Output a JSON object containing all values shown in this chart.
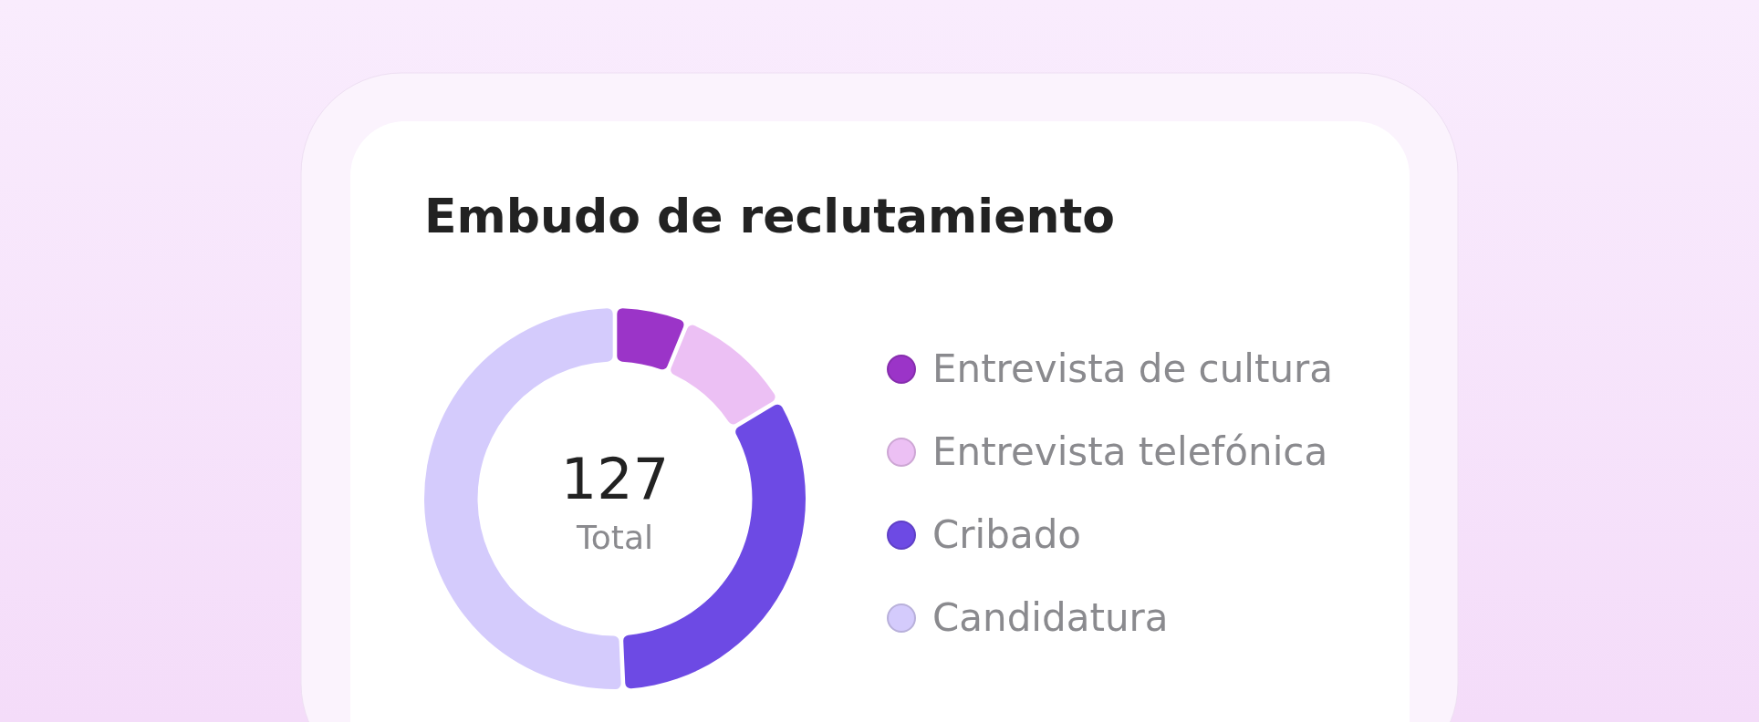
{
  "chart_data": {
    "type": "donut",
    "title": "Embudo de reclutamiento",
    "categories": [
      "Entrevista de cultura",
      "Entrevista telefónica",
      "Cribado",
      "Candidatura"
    ],
    "values": [
      6,
      10,
      33,
      51
    ],
    "colors": [
      "#9b34c8",
      "#ecc0f4",
      "#6d4ae4",
      "#d4cbfc"
    ],
    "annotations": [
      "127",
      "Total"
    ],
    "legend": "right"
  }
}
